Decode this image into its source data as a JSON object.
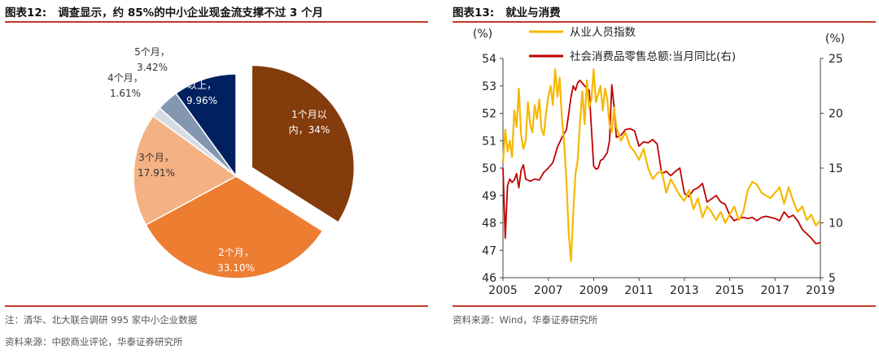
{
  "left": {
    "title_num": "图表12:",
    "title_text": "调查显示，约 85%的中小企业现金流支撑不过 3 个月",
    "note": "注：清华、北大联合调研 995 家中小企业数据",
    "source": "资料来源：中欧商业评论，华泰证券研究所"
  },
  "right": {
    "title_num": "图表13:",
    "title_text": "就业与消费",
    "source": "资料来源：Wind，华泰证券研究所"
  },
  "chart_data": [
    {
      "type": "pie",
      "title": "",
      "slices": [
        {
          "label_lines": [
            "1个月以",
            "内，34%"
          ],
          "value": 34.0,
          "color": "#843c0c",
          "exploded": true
        },
        {
          "label_lines": [
            "2个月，",
            "33.10%"
          ],
          "value": 33.1,
          "color": "#ed7d31",
          "exploded": false
        },
        {
          "label_lines": [
            "3个月，",
            "17.91%"
          ],
          "value": 17.91,
          "color": "#f4b183",
          "exploded": false
        },
        {
          "label_lines": [
            "4个月，",
            "1.61%"
          ],
          "value": 1.61,
          "color": "#d6dce5",
          "exploded": false
        },
        {
          "label_lines": [
            "5个月，",
            "3.42%"
          ],
          "value": 3.42,
          "color": "#8497b0",
          "exploded": false
        },
        {
          "label_lines": [
            "6个月",
            "以上，",
            "9.96%"
          ],
          "value": 9.96,
          "color": "#002060",
          "exploded": false
        }
      ]
    },
    {
      "type": "line",
      "title": "",
      "ylabel_left": "(%)",
      "ylabel_right": "(%)",
      "ylim_left": [
        46,
        54
      ],
      "ylim_right": [
        5,
        25
      ],
      "yticks_left": [
        46,
        47,
        48,
        49,
        50,
        51,
        52,
        53,
        54
      ],
      "yticks_right": [
        5,
        10,
        15,
        20,
        25
      ],
      "xlim": [
        2005,
        2019
      ],
      "xticks": [
        "2005",
        "2007",
        "2009",
        "2011",
        "2013",
        "2015",
        "2017",
        "2019"
      ],
      "legend_position": "top",
      "series": [
        {
          "name": "从业人员指数",
          "axis": "left",
          "color": "#f5b800",
          "x": [
            2005.0,
            2005.1,
            2005.2,
            2005.3,
            2005.4,
            2005.5,
            2005.6,
            2005.7,
            2005.8,
            2005.9,
            2006.0,
            2006.1,
            2006.2,
            2006.3,
            2006.4,
            2006.5,
            2006.6,
            2006.7,
            2006.8,
            2006.9,
            2007.0,
            2007.1,
            2007.2,
            2007.3,
            2007.4,
            2007.5,
            2007.6,
            2007.7,
            2007.8,
            2007.9,
            2008.0,
            2008.1,
            2008.2,
            2008.3,
            2008.4,
            2008.5,
            2008.6,
            2008.7,
            2008.8,
            2008.9,
            2009.0,
            2009.1,
            2009.2,
            2009.3,
            2009.4,
            2009.5,
            2009.6,
            2009.7,
            2009.8,
            2009.9,
            2010.0,
            2010.2,
            2010.4,
            2010.6,
            2010.8,
            2011.0,
            2011.2,
            2011.4,
            2011.6,
            2011.8,
            2012.0,
            2012.2,
            2012.4,
            2012.6,
            2012.8,
            2013.0,
            2013.2,
            2013.4,
            2013.6,
            2013.8,
            2014.0,
            2014.2,
            2014.4,
            2014.6,
            2014.8,
            2015.0,
            2015.2,
            2015.4,
            2015.6,
            2015.8,
            2016.0,
            2016.2,
            2016.4,
            2016.6,
            2016.8,
            2017.0,
            2017.2,
            2017.4,
            2017.6,
            2017.8,
            2018.0,
            2018.2,
            2018.4,
            2018.6,
            2018.8,
            2019.0
          ],
          "y": [
            50.2,
            51.4,
            50.6,
            51.0,
            50.4,
            52.1,
            51.5,
            52.9,
            51.2,
            50.7,
            51.0,
            52.4,
            51.6,
            51.3,
            52.3,
            51.8,
            52.5,
            51.4,
            51.2,
            52.0,
            52.6,
            53.0,
            52.3,
            53.6,
            52.6,
            53.3,
            51.8,
            50.9,
            49.5,
            47.6,
            46.6,
            48.4,
            49.8,
            50.3,
            51.7,
            52.8,
            51.6,
            53.2,
            52.2,
            52.5,
            53.6,
            52.4,
            52.7,
            53.0,
            52.1,
            52.9,
            52.5,
            51.6,
            51.3,
            52.2,
            51.5,
            51.0,
            51.3,
            50.8,
            50.6,
            50.3,
            50.7,
            50.0,
            49.6,
            49.8,
            49.9,
            49.1,
            49.6,
            49.3,
            49.0,
            48.8,
            49.2,
            48.5,
            48.9,
            48.2,
            48.6,
            48.4,
            48.1,
            48.4,
            48.0,
            48.3,
            48.6,
            48.1,
            48.4,
            49.2,
            49.5,
            49.4,
            49.1,
            49.0,
            48.9,
            49.1,
            49.3,
            48.7,
            49.3,
            48.8,
            48.4,
            48.6,
            48.1,
            48.3,
            47.9,
            48.1
          ]
        },
        {
          "name": "社会消费品零售总额:当月同比(右)",
          "axis": "right",
          "color": "#c00000",
          "x": [
            2005.0,
            2005.1,
            2005.2,
            2005.3,
            2005.4,
            2005.5,
            2005.6,
            2005.7,
            2005.8,
            2005.9,
            2006.0,
            2006.2,
            2006.4,
            2006.6,
            2006.8,
            2007.0,
            2007.2,
            2007.4,
            2007.6,
            2007.8,
            2008.0,
            2008.1,
            2008.2,
            2008.3,
            2008.4,
            2008.6,
            2008.8,
            2009.0,
            2009.1,
            2009.2,
            2009.3,
            2009.4,
            2009.5,
            2009.6,
            2009.7,
            2009.8,
            2009.9,
            2010.0,
            2010.2,
            2010.4,
            2010.6,
            2010.8,
            2011.0,
            2011.2,
            2011.4,
            2011.6,
            2011.8,
            2012.0,
            2012.2,
            2012.4,
            2012.6,
            2012.8,
            2013.0,
            2013.2,
            2013.4,
            2013.6,
            2013.8,
            2014.0,
            2014.2,
            2014.4,
            2014.6,
            2014.8,
            2015.0,
            2015.2,
            2015.4,
            2015.6,
            2015.8,
            2016.0,
            2016.2,
            2016.4,
            2016.6,
            2016.8,
            2017.0,
            2017.2,
            2017.4,
            2017.6,
            2017.8,
            2018.0,
            2018.2,
            2018.4,
            2018.6,
            2018.8,
            2019.0
          ],
          "y": [
            15.0,
            8.6,
            13.4,
            14.0,
            13.7,
            13.9,
            14.5,
            13.2,
            14.8,
            15.3,
            14.0,
            13.8,
            14.0,
            13.9,
            14.6,
            15.0,
            15.5,
            16.9,
            17.8,
            18.5,
            21.5,
            22.5,
            22.1,
            22.8,
            23.0,
            22.5,
            22.1,
            15.2,
            14.9,
            15.0,
            15.7,
            15.8,
            16.1,
            16.4,
            17.5,
            22.6,
            20.6,
            17.8,
            18.0,
            18.5,
            18.6,
            18.4,
            17.0,
            17.4,
            17.3,
            17.6,
            17.2,
            14.5,
            14.7,
            14.3,
            14.7,
            15.0,
            12.7,
            12.4,
            13.0,
            13.2,
            13.6,
            11.9,
            12.2,
            12.5,
            11.9,
            11.7,
            10.7,
            10.2,
            10.4,
            10.5,
            10.4,
            10.5,
            10.2,
            10.5,
            10.6,
            10.5,
            10.4,
            10.2,
            11.0,
            10.5,
            10.7,
            10.2,
            9.4,
            9.0,
            8.6,
            8.1,
            8.2
          ]
        }
      ]
    }
  ]
}
